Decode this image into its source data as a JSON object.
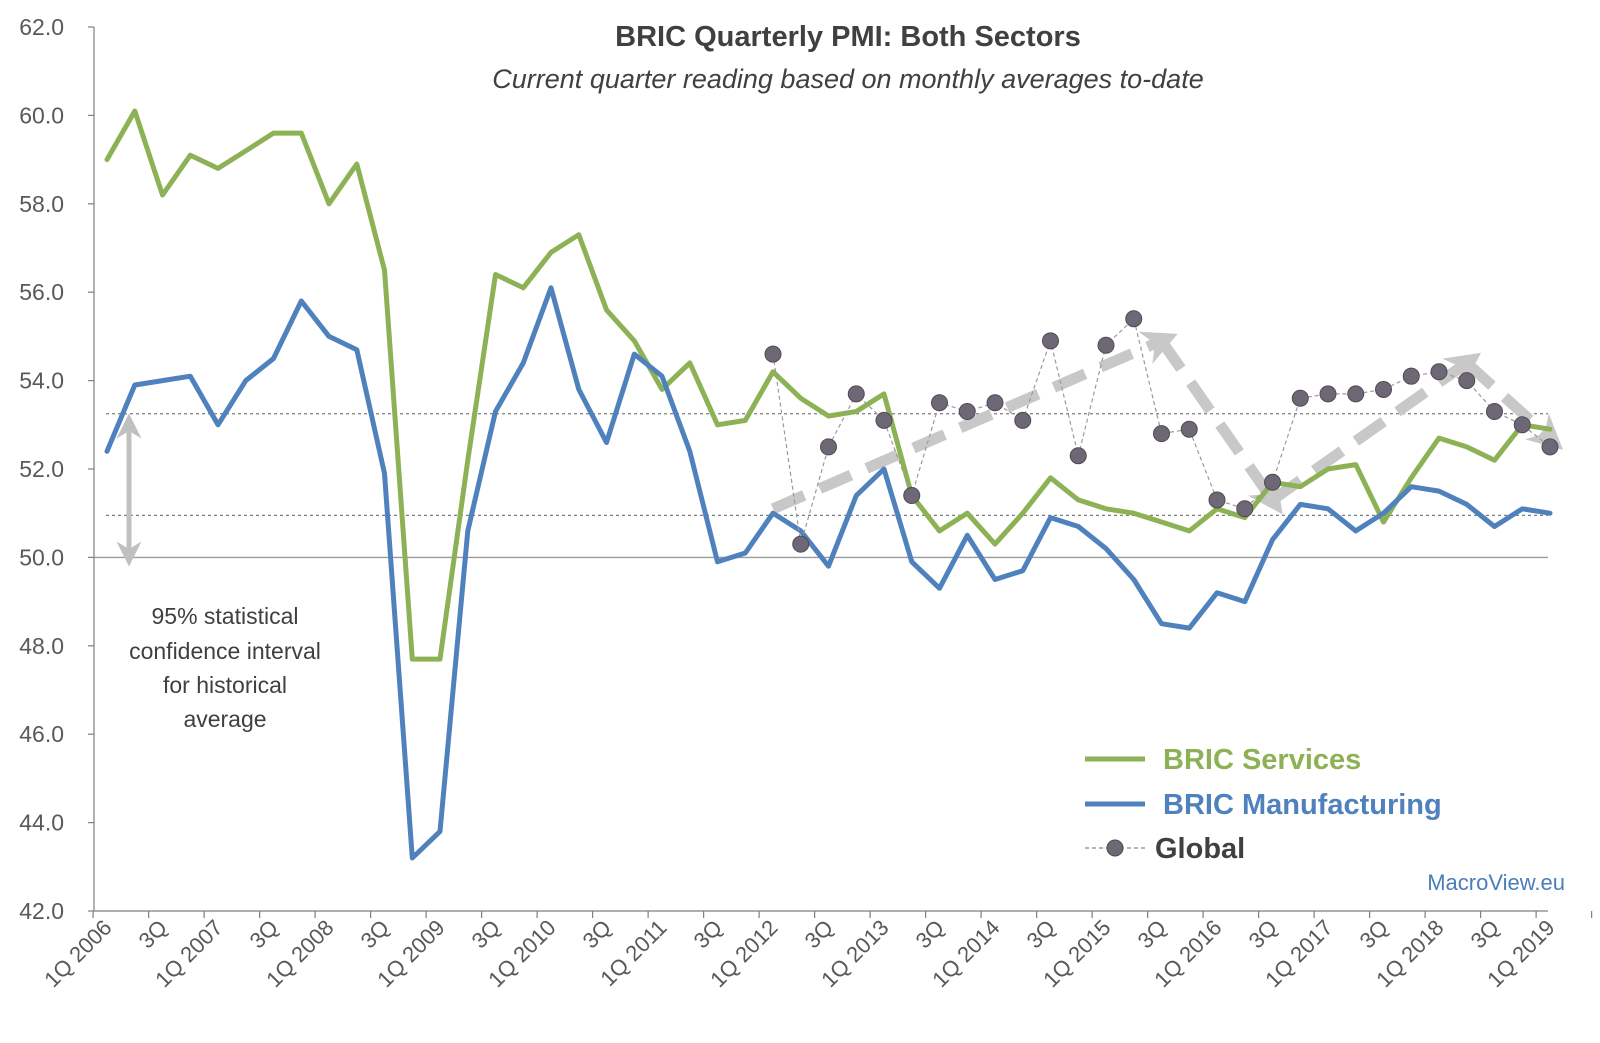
{
  "chart_data": {
    "type": "line",
    "title": "BRIC Quarterly PMI: Both Sectors",
    "subtitle": "Current quarter reading based on monthly averages to-date",
    "ylim": [
      42.0,
      62.0
    ],
    "yticks": [
      "42.0",
      "44.0",
      "46.0",
      "48.0",
      "50.0",
      "52.0",
      "54.0",
      "56.0",
      "58.0",
      "60.0",
      "62.0"
    ],
    "xtick_labels": [
      "1Q 2006",
      "3Q",
      "1Q 2007",
      "3Q",
      "1Q 2008",
      "3Q",
      "1Q 2009",
      "3Q",
      "1Q 2010",
      "3Q",
      "1Q 2011",
      "3Q",
      "1Q 2012",
      "3Q",
      "1Q 2013",
      "3Q",
      "1Q 2014",
      "3Q",
      "1Q 2015",
      "3Q",
      "1Q 2016",
      "3Q",
      "1Q 2017",
      "3Q",
      "1Q 2018",
      "3Q",
      "1Q 2019"
    ],
    "reference_lines": {
      "baseline": 50.0,
      "confidence_upper": 53.25,
      "confidence_lower": 50.95
    },
    "annotation": [
      "95% statistical",
      "confidence interval",
      "for historical",
      "average"
    ],
    "series": [
      {
        "name": "BRIC Services",
        "color": "#8db255",
        "style": "line",
        "start_index": 0,
        "values": [
          59.0,
          60.1,
          58.2,
          59.1,
          58.8,
          59.2,
          59.6,
          59.6,
          58.0,
          58.9,
          56.5,
          47.7,
          47.7,
          52.2,
          56.4,
          56.1,
          56.9,
          57.3,
          55.6,
          54.9,
          53.8,
          54.4,
          53.0,
          53.1,
          54.2,
          53.6,
          53.2,
          53.3,
          53.7,
          51.4,
          50.6,
          51.0,
          50.3,
          51.0,
          51.8,
          51.3,
          51.1,
          51.0,
          50.8,
          50.6,
          51.1,
          50.9,
          51.7,
          51.6,
          52.0,
          52.1,
          50.8,
          51.8,
          52.7,
          52.5,
          52.2,
          53.0,
          52.9
        ]
      },
      {
        "name": "BRIC Manufacturing",
        "color": "#4f81bd",
        "style": "line",
        "start_index": 0,
        "values": [
          52.4,
          53.9,
          54.0,
          54.1,
          53.0,
          54.0,
          54.5,
          55.8,
          55.0,
          54.7,
          51.9,
          43.2,
          43.8,
          50.6,
          53.3,
          54.4,
          56.1,
          53.8,
          52.6,
          54.6,
          54.1,
          52.4,
          49.9,
          50.1,
          51.0,
          50.6,
          49.8,
          51.4,
          52.0,
          49.9,
          49.3,
          50.5,
          49.5,
          49.7,
          50.9,
          50.7,
          50.2,
          49.5,
          48.5,
          48.4,
          49.2,
          49.0,
          50.4,
          51.2,
          51.1,
          50.6,
          51.0,
          51.6,
          51.5,
          51.2,
          50.7,
          51.1,
          51.0
        ]
      },
      {
        "name": "Global",
        "color": "#6e6876",
        "style": "dotted-markers",
        "start_index": 24,
        "values": [
          54.6,
          50.3,
          52.5,
          53.7,
          53.1,
          51.4,
          53.5,
          53.3,
          53.5,
          53.1,
          54.9,
          52.3,
          54.8,
          55.4,
          52.8,
          52.9,
          51.3,
          51.1,
          51.7,
          53.6,
          53.7,
          53.7,
          53.8,
          54.1,
          54.2,
          54.0,
          53.3,
          53.0,
          52.5
        ]
      }
    ],
    "trend_arrows": [
      {
        "from": [
          24,
          51.1
        ],
        "to": [
          38,
          54.9
        ]
      },
      {
        "from": [
          38,
          54.9
        ],
        "to": [
          42,
          51.3
        ]
      },
      {
        "from": [
          42,
          51.3
        ],
        "to": [
          49,
          54.4
        ]
      },
      {
        "from": [
          49,
          54.4
        ],
        "to": [
          52,
          52.7
        ]
      }
    ],
    "legend": {
      "position": "bottom-right",
      "entries": [
        "BRIC Services",
        "BRIC Manufacturing",
        "Global"
      ]
    },
    "colors": {
      "grid": "#bfbfbf",
      "axis": "#7f7f7f",
      "arrow": "#c8c8c8",
      "source": "#4a7ebb"
    },
    "source_label": "MacroView.eu"
  }
}
